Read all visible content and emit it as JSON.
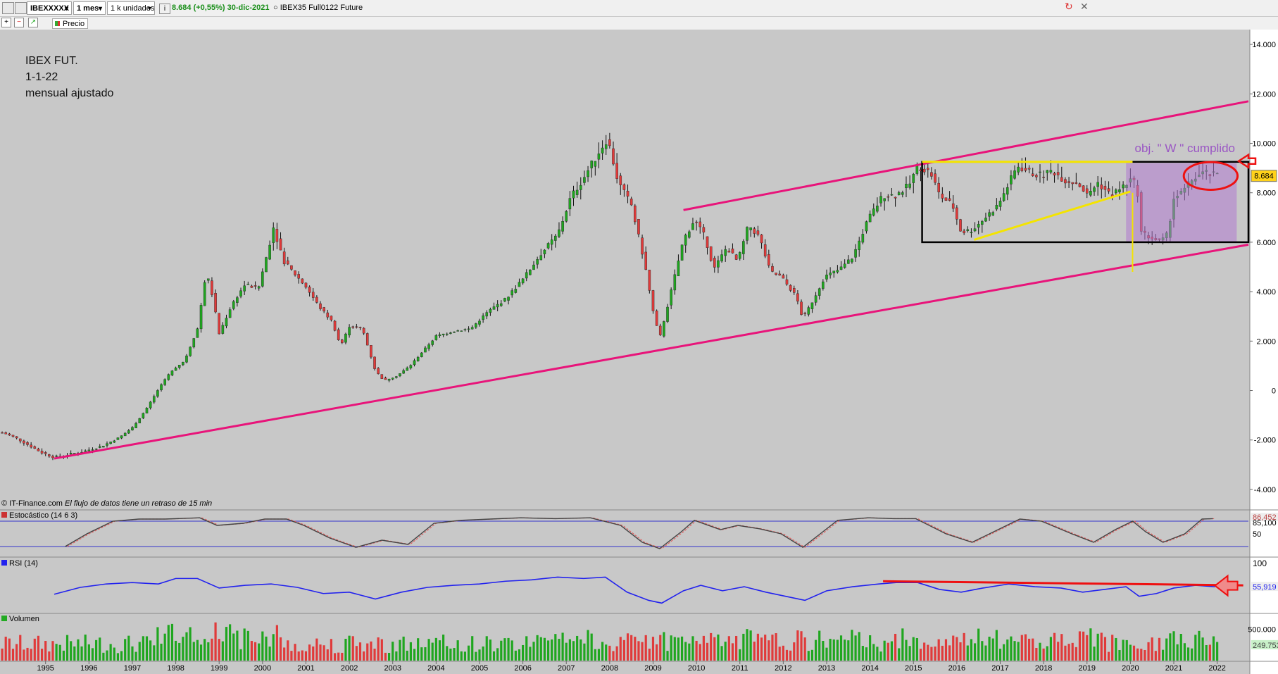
{
  "toolbar": {
    "symbol": "IBEXXXXX",
    "period": "1 mes",
    "units": "1 k unidades",
    "info_icon": "info-icon",
    "quote": "8.684 (+0,55%) 30-dic-2021",
    "instrument": "IBEX35 Full0122 Future",
    "price_label": "Precio"
  },
  "annotation": {
    "line1": "IBEX FUT.",
    "line2": "1-1-22",
    "line3": "mensual ajustado",
    "target": "obj. \" W \" cumplido"
  },
  "footer_note": {
    "source": "© IT-Finance.com",
    "delay": "El flujo de datos tiene un retraso de 15 min"
  },
  "colors": {
    "up": "#1fa61f",
    "down": "#e03a3a",
    "channel": "#e8147a",
    "yellow": "#f4e400",
    "rsi": "#2222ee",
    "stoch": "#444444",
    "red_mark": "#ee1111",
    "panel_bg": "#c8c8c8"
  },
  "chart_data": {
    "type": "candlestick",
    "main": {
      "price_axis_ticks": [
        "14.000",
        "12.000",
        "10.000",
        "8.000",
        "6.000",
        "4.000",
        "2.000",
        "0",
        "-2.000",
        "-4.000"
      ],
      "price_axis_values": [
        14000,
        12000,
        10000,
        8000,
        6000,
        4000,
        2000,
        0,
        -2000,
        -4000
      ],
      "ylim": [
        -4600,
        14600
      ],
      "last_price_label": "8.684",
      "last_price": 8684,
      "x_years": [
        "1995",
        "1996",
        "1997",
        "1998",
        "1999",
        "2000",
        "2001",
        "2002",
        "2003",
        "2004",
        "2005",
        "2006",
        "2007",
        "2008",
        "2009",
        "2010",
        "2011",
        "2012",
        "2013",
        "2014",
        "2015",
        "2016",
        "2017",
        "2018",
        "2019",
        "2020",
        "2021",
        "2022"
      ],
      "xlim_years": [
        1993.95,
        2022.72
      ],
      "close_path": [
        [
          1994.0,
          -1700
        ],
        [
          1994.3,
          -1900
        ],
        [
          1994.6,
          -2200
        ],
        [
          1994.9,
          -2500
        ],
        [
          1995.2,
          -2700
        ],
        [
          1995.5,
          -2600
        ],
        [
          1995.9,
          -2450
        ],
        [
          1996.3,
          -2250
        ],
        [
          1996.7,
          -1900
        ],
        [
          1997.0,
          -1500
        ],
        [
          1997.3,
          -800
        ],
        [
          1997.6,
          50
        ],
        [
          1997.9,
          800
        ],
        [
          1998.2,
          1200
        ],
        [
          1998.5,
          2500
        ],
        [
          1998.7,
          4800
        ],
        [
          1998.85,
          3800
        ],
        [
          1999.0,
          2300
        ],
        [
          1999.3,
          3500
        ],
        [
          1999.6,
          4300
        ],
        [
          1999.9,
          4100
        ],
        [
          2000.1,
          5500
        ],
        [
          2000.25,
          6600
        ],
        [
          2000.5,
          5200
        ],
        [
          2000.8,
          4600
        ],
        [
          2001.0,
          4200
        ],
        [
          2001.3,
          3400
        ],
        [
          2001.6,
          2800
        ],
        [
          2001.8,
          1800
        ],
        [
          2002.0,
          2600
        ],
        [
          2002.3,
          2500
        ],
        [
          2002.6,
          800
        ],
        [
          2002.8,
          400
        ],
        [
          2003.1,
          600
        ],
        [
          2003.4,
          1000
        ],
        [
          2003.7,
          1600
        ],
        [
          2004.0,
          2200
        ],
        [
          2004.4,
          2400
        ],
        [
          2004.8,
          2500
        ],
        [
          2005.2,
          3200
        ],
        [
          2005.6,
          3700
        ],
        [
          2006.0,
          4500
        ],
        [
          2006.4,
          5500
        ],
        [
          2006.8,
          6300
        ],
        [
          2007.1,
          7800
        ],
        [
          2007.4,
          8600
        ],
        [
          2007.8,
          9800
        ],
        [
          2007.95,
          10200
        ],
        [
          2008.2,
          8400
        ],
        [
          2008.5,
          7500
        ],
        [
          2008.8,
          5200
        ],
        [
          2009.0,
          3200
        ],
        [
          2009.15,
          2100
        ],
        [
          2009.4,
          3900
        ],
        [
          2009.7,
          6100
        ],
        [
          2009.95,
          6900
        ],
        [
          2010.2,
          6200
        ],
        [
          2010.4,
          4900
        ],
        [
          2010.7,
          5800
        ],
        [
          2010.95,
          5200
        ],
        [
          2011.2,
          6700
        ],
        [
          2011.45,
          6200
        ],
        [
          2011.7,
          4800
        ],
        [
          2011.95,
          4600
        ],
        [
          2012.3,
          3800
        ],
        [
          2012.45,
          2900
        ],
        [
          2012.7,
          3700
        ],
        [
          2012.95,
          4600
        ],
        [
          2013.3,
          4900
        ],
        [
          2013.6,
          5400
        ],
        [
          2013.95,
          6900
        ],
        [
          2014.3,
          7900
        ],
        [
          2014.6,
          7900
        ],
        [
          2014.9,
          8300
        ],
        [
          2015.1,
          9100
        ],
        [
          2015.4,
          8800
        ],
        [
          2015.6,
          7900
        ],
        [
          2015.9,
          7500
        ],
        [
          2016.1,
          6400
        ],
        [
          2016.35,
          6500
        ],
        [
          2016.6,
          6900
        ],
        [
          2016.95,
          7500
        ],
        [
          2017.15,
          8200
        ],
        [
          2017.4,
          9100
        ],
        [
          2017.7,
          8800
        ],
        [
          2017.95,
          8700
        ],
        [
          2018.2,
          8900
        ],
        [
          2018.5,
          8500
        ],
        [
          2018.8,
          8400
        ],
        [
          2019.0,
          7900
        ],
        [
          2019.25,
          8400
        ],
        [
          2019.55,
          7900
        ],
        [
          2019.8,
          8200
        ],
        [
          2020.0,
          8500
        ],
        [
          2020.15,
          8300
        ],
        [
          2020.25,
          6400
        ],
        [
          2020.45,
          6200
        ],
        [
          2020.7,
          6000
        ],
        [
          2020.85,
          6300
        ],
        [
          2021.0,
          7800
        ],
        [
          2021.2,
          8000
        ],
        [
          2021.45,
          8600
        ],
        [
          2021.7,
          8800
        ],
        [
          2021.95,
          8684
        ]
      ],
      "channel_upper": [
        [
          2009.7,
          7300
        ],
        [
          2022.72,
          11700
        ]
      ],
      "channel_lower": [
        [
          1995.2,
          -2750
        ],
        [
          2022.72,
          5900
        ]
      ],
      "box": {
        "x": [
          2015.2,
          2022.72
        ],
        "y": [
          6000,
          9250
        ]
      },
      "box_top_yellow": [
        [
          2015.2,
          9250
        ],
        [
          2020.05,
          9250
        ]
      ],
      "yellow_trend": [
        [
          2016.4,
          6100
        ],
        [
          2020.0,
          8050
        ]
      ],
      "yellow_drop": [
        [
          2020.05,
          8000
        ],
        [
          2020.05,
          4800
        ]
      ],
      "projection_zone": {
        "x": [
          2019.9,
          2022.45
        ],
        "y": [
          6000,
          9200
        ]
      },
      "ellipse": {
        "cx": 2021.85,
        "cy": 8680,
        "rx_years": 0.62,
        "ry": 560
      }
    },
    "stochastic": {
      "label": "Estocástico (14 6 3)",
      "value_label": "86,452",
      "level_label": "85,100",
      "mid_label": "50",
      "levels": [
        20,
        80
      ],
      "points": [
        [
          1995.5,
          20
        ],
        [
          1996.0,
          50
        ],
        [
          1996.6,
          80
        ],
        [
          1997.2,
          85
        ],
        [
          1997.8,
          85
        ],
        [
          1998.6,
          88
        ],
        [
          1999.0,
          70
        ],
        [
          1999.6,
          75
        ],
        [
          2000.1,
          85
        ],
        [
          2000.6,
          85
        ],
        [
          2001.0,
          70
        ],
        [
          2001.6,
          40
        ],
        [
          2002.2,
          18
        ],
        [
          2002.8,
          35
        ],
        [
          2003.4,
          25
        ],
        [
          2004.0,
          75
        ],
        [
          2004.6,
          82
        ],
        [
          2005.3,
          85
        ],
        [
          2006.0,
          88
        ],
        [
          2006.8,
          86
        ],
        [
          2007.6,
          88
        ],
        [
          2008.3,
          70
        ],
        [
          2008.8,
          30
        ],
        [
          2009.2,
          15
        ],
        [
          2009.7,
          55
        ],
        [
          2010.0,
          82
        ],
        [
          2010.6,
          60
        ],
        [
          2011.0,
          70
        ],
        [
          2011.5,
          62
        ],
        [
          2012.0,
          50
        ],
        [
          2012.5,
          18
        ],
        [
          2012.9,
          50
        ],
        [
          2013.3,
          82
        ],
        [
          2014.0,
          88
        ],
        [
          2014.6,
          86
        ],
        [
          2015.1,
          86
        ],
        [
          2015.8,
          50
        ],
        [
          2016.4,
          30
        ],
        [
          2017.0,
          60
        ],
        [
          2017.5,
          85
        ],
        [
          2018.0,
          80
        ],
        [
          2018.7,
          50
        ],
        [
          2019.2,
          30
        ],
        [
          2019.7,
          60
        ],
        [
          2020.1,
          80
        ],
        [
          2020.4,
          55
        ],
        [
          2020.8,
          30
        ],
        [
          2021.3,
          50
        ],
        [
          2021.7,
          85
        ],
        [
          2021.95,
          86
        ]
      ]
    },
    "rsi": {
      "label": "RSI (14)",
      "axis_label": "100",
      "value_label": "55,919",
      "points": [
        [
          1995.2,
          45
        ],
        [
          1995.8,
          55
        ],
        [
          1996.4,
          60
        ],
        [
          1997.0,
          62
        ],
        [
          1997.6,
          60
        ],
        [
          1998.0,
          68
        ],
        [
          1998.5,
          68
        ],
        [
          1999.0,
          54
        ],
        [
          1999.6,
          58
        ],
        [
          2000.2,
          60
        ],
        [
          2000.8,
          55
        ],
        [
          2001.4,
          46
        ],
        [
          2002.0,
          48
        ],
        [
          2002.6,
          38
        ],
        [
          2003.2,
          48
        ],
        [
          2003.8,
          55
        ],
        [
          2004.4,
          58
        ],
        [
          2005.0,
          60
        ],
        [
          2005.6,
          64
        ],
        [
          2006.2,
          66
        ],
        [
          2006.8,
          70
        ],
        [
          2007.4,
          68
        ],
        [
          2007.9,
          70
        ],
        [
          2008.4,
          48
        ],
        [
          2008.9,
          36
        ],
        [
          2009.2,
          32
        ],
        [
          2009.7,
          50
        ],
        [
          2010.1,
          58
        ],
        [
          2010.6,
          50
        ],
        [
          2011.1,
          56
        ],
        [
          2011.6,
          48
        ],
        [
          2012.2,
          40
        ],
        [
          2012.5,
          36
        ],
        [
          2013.0,
          50
        ],
        [
          2013.6,
          56
        ],
        [
          2014.2,
          60
        ],
        [
          2014.6,
          62
        ],
        [
          2015.1,
          62
        ],
        [
          2015.6,
          52
        ],
        [
          2016.1,
          48
        ],
        [
          2016.6,
          54
        ],
        [
          2017.2,
          60
        ],
        [
          2017.8,
          56
        ],
        [
          2018.4,
          54
        ],
        [
          2018.9,
          48
        ],
        [
          2019.4,
          52
        ],
        [
          2019.9,
          56
        ],
        [
          2020.2,
          42
        ],
        [
          2020.6,
          46
        ],
        [
          2021.0,
          54
        ],
        [
          2021.5,
          58
        ],
        [
          2021.95,
          55.9
        ]
      ],
      "trendline": [
        [
          2014.3,
          64
        ],
        [
          2022.6,
          58
        ]
      ]
    },
    "volume": {
      "label": "Volumen",
      "axis_ticks": [
        "500.000"
      ],
      "axis_values": [
        500000
      ],
      "last_label": "249.753",
      "last_value": 249753,
      "max": 700000
    }
  }
}
